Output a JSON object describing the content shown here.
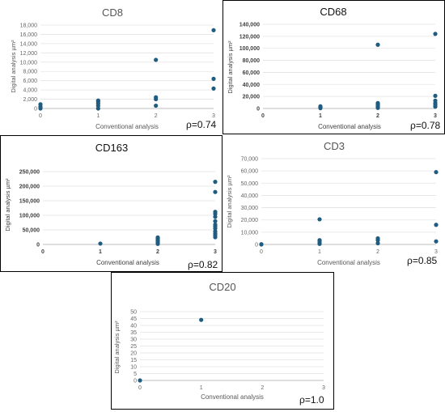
{
  "chart_data": [
    {
      "type": "scatter",
      "title": "CD8",
      "xlabel": "Conventional analysis",
      "ylabel": "Digital analysis µm²",
      "xlim": [
        0,
        3
      ],
      "ylim": [
        0,
        18000
      ],
      "x_ticks": [
        "0",
        "1",
        "2",
        "3"
      ],
      "y_ticks": [
        "0",
        "2,000",
        "4,000",
        "6,000",
        "8,000",
        "10,000",
        "12,000",
        "14,000",
        "16,000",
        "18,000"
      ],
      "points": [
        {
          "x": 0,
          "y": 0
        },
        {
          "x": 0,
          "y": 400
        },
        {
          "x": 0,
          "y": 900
        },
        {
          "x": 1,
          "y": 0
        },
        {
          "x": 1,
          "y": 600
        },
        {
          "x": 1,
          "y": 1100
        },
        {
          "x": 1,
          "y": 1500
        },
        {
          "x": 1,
          "y": 1700
        },
        {
          "x": 2,
          "y": 600
        },
        {
          "x": 2,
          "y": 2000
        },
        {
          "x": 2,
          "y": 2400
        },
        {
          "x": 2,
          "y": 10500
        },
        {
          "x": 3,
          "y": 4300
        },
        {
          "x": 3,
          "y": 6400
        },
        {
          "x": 3,
          "y": 16900
        }
      ],
      "rho": "ρ=0.74",
      "marker_color": "#1F5C80"
    },
    {
      "type": "scatter",
      "title": "CD68",
      "xlabel": "Conventional analysis",
      "ylabel": "Digital analysis µm²",
      "xlim": [
        0,
        3
      ],
      "ylim": [
        0,
        140000
      ],
      "x_ticks": [
        "0",
        "1",
        "2",
        "3"
      ],
      "y_ticks": [
        "0",
        "20,000",
        "40,000",
        "60,000",
        "80,000",
        "100,000",
        "120,000",
        "140,000"
      ],
      "points": [
        {
          "x": 1,
          "y": 500
        },
        {
          "x": 1,
          "y": 1500
        },
        {
          "x": 1,
          "y": 2500
        },
        {
          "x": 1,
          "y": 3500
        },
        {
          "x": 2,
          "y": 1000
        },
        {
          "x": 2,
          "y": 3000
        },
        {
          "x": 2,
          "y": 5000
        },
        {
          "x": 2,
          "y": 7000
        },
        {
          "x": 2,
          "y": 9000
        },
        {
          "x": 2,
          "y": 106000
        },
        {
          "x": 3,
          "y": 3000
        },
        {
          "x": 3,
          "y": 6000
        },
        {
          "x": 3,
          "y": 9000
        },
        {
          "x": 3,
          "y": 13000
        },
        {
          "x": 3,
          "y": 21000
        },
        {
          "x": 3,
          "y": 124000
        }
      ],
      "rho": "ρ=0.78",
      "marker_color": "#1F5C80"
    },
    {
      "type": "scatter",
      "title": "CD163",
      "xlabel": "Conventional analysis",
      "ylabel": "Digital analysis µm²",
      "xlim": [
        0,
        3
      ],
      "ylim": [
        0,
        250000
      ],
      "x_ticks": [
        "0",
        "1",
        "2",
        "3"
      ],
      "y_ticks": [
        "0",
        "50,000",
        "100,000",
        "150,000",
        "200,000",
        "250,000"
      ],
      "points": [
        {
          "x": 1,
          "y": 3000
        },
        {
          "x": 2,
          "y": 2000
        },
        {
          "x": 2,
          "y": 6000
        },
        {
          "x": 2,
          "y": 10000
        },
        {
          "x": 2,
          "y": 15000
        },
        {
          "x": 2,
          "y": 20000
        },
        {
          "x": 2,
          "y": 24000
        },
        {
          "x": 3,
          "y": 25000
        },
        {
          "x": 3,
          "y": 32000
        },
        {
          "x": 3,
          "y": 38000
        },
        {
          "x": 3,
          "y": 45000
        },
        {
          "x": 3,
          "y": 55000
        },
        {
          "x": 3,
          "y": 62000
        },
        {
          "x": 3,
          "y": 68000
        },
        {
          "x": 3,
          "y": 80000
        },
        {
          "x": 3,
          "y": 95000
        },
        {
          "x": 3,
          "y": 105000
        },
        {
          "x": 3,
          "y": 112000
        },
        {
          "x": 3,
          "y": 180000
        },
        {
          "x": 3,
          "y": 215000
        }
      ],
      "rho": "ρ=0.82",
      "marker_color": "#1F5C80"
    },
    {
      "type": "scatter",
      "title": "CD3",
      "xlabel": "Conventional analysis",
      "ylabel": "Digital analysis µm²",
      "xlim": [
        0,
        3
      ],
      "ylim": [
        0,
        70000
      ],
      "x_ticks": [
        "0",
        "1",
        "2",
        "3"
      ],
      "y_ticks": [
        "0",
        "10,000",
        "20,000",
        "30,000",
        "40,000",
        "50,000",
        "60,000",
        "70,000"
      ],
      "points": [
        {
          "x": 0,
          "y": 0
        },
        {
          "x": 0,
          "y": 200
        },
        {
          "x": 1,
          "y": 500
        },
        {
          "x": 1,
          "y": 2000
        },
        {
          "x": 1,
          "y": 3500
        },
        {
          "x": 1,
          "y": 20500
        },
        {
          "x": 2,
          "y": 1000
        },
        {
          "x": 2,
          "y": 3500
        },
        {
          "x": 2,
          "y": 5000
        },
        {
          "x": 3,
          "y": 2500
        },
        {
          "x": 3,
          "y": 16000
        },
        {
          "x": 3,
          "y": 59000
        }
      ],
      "rho": "ρ=0.85",
      "marker_color": "#1F5C80"
    },
    {
      "type": "scatter",
      "title": "CD20",
      "xlabel": "Conventional analysis",
      "ylabel": "Digital analysis µm²",
      "xlim": [
        0,
        3
      ],
      "ylim": [
        0,
        50
      ],
      "x_ticks": [
        "0",
        "1",
        "2",
        "3"
      ],
      "y_ticks": [
        "0",
        "5",
        "10",
        "15",
        "20",
        "25",
        "30",
        "35",
        "40",
        "45",
        "50"
      ],
      "points": [
        {
          "x": 0,
          "y": 0
        },
        {
          "x": 1,
          "y": 44
        }
      ],
      "rho": "ρ=1.0",
      "marker_color": "#1F5C80"
    }
  ]
}
